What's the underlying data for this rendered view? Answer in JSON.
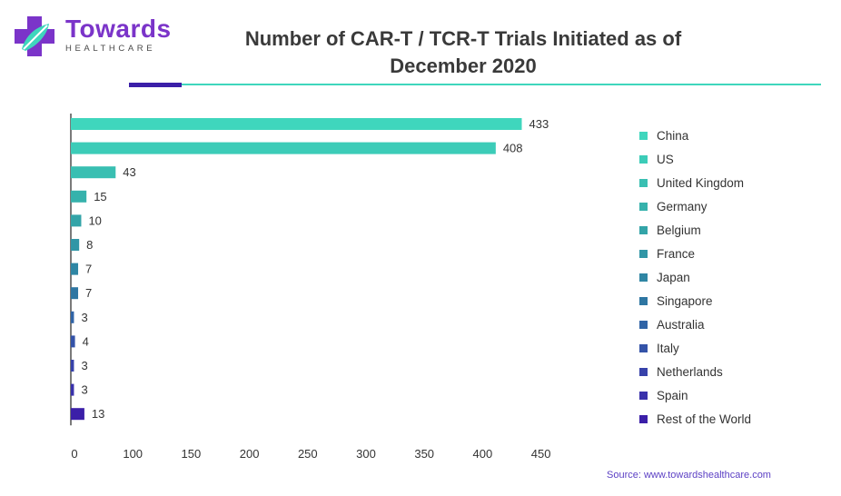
{
  "logo": {
    "name": "Towards",
    "subtitle": "HEALTHCARE",
    "primary_color": "#7b34c9",
    "secondary_color": "#3fd6bd"
  },
  "title": {
    "line1": "Number of CAR-T / TCR-T Trials Initiated as of",
    "line2": "December 2020"
  },
  "source": "Source: www.towardshealthcare.com",
  "chart_data": {
    "type": "bar",
    "orientation": "horizontal",
    "title": "Number of CAR-T / TCR-T Trials Initiated as of December 2020",
    "xlabel": "",
    "ylabel": "",
    "xlim": [
      0,
      450
    ],
    "x_ticks": [
      0,
      100,
      150,
      200,
      250,
      300,
      350,
      400,
      450
    ],
    "grid": false,
    "legend_position": "right",
    "categories": [
      "China",
      "US",
      "United Kingdom",
      "Germany",
      "Belgium",
      "France",
      "Japan",
      "Singapore",
      "Australia",
      "Italy",
      "Netherlands",
      "Spain",
      "Rest of the World"
    ],
    "values": [
      433,
      408,
      43,
      15,
      10,
      8,
      7,
      7,
      3,
      4,
      3,
      3,
      13
    ],
    "colors": [
      "#3fd6bd",
      "#3cccb8",
      "#39bfb2",
      "#36b2ac",
      "#33a4a8",
      "#3196a6",
      "#2f86a4",
      "#2e76a2",
      "#3064a6",
      "#3453a8",
      "#3742aa",
      "#3931ab",
      "#3b1fa8"
    ]
  }
}
